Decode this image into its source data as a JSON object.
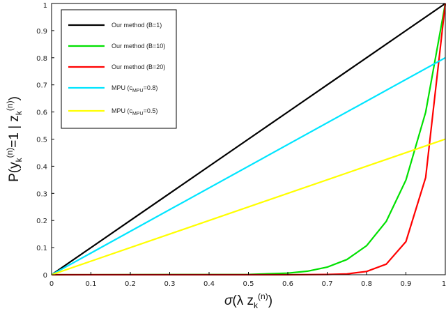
{
  "chart_data": {
    "type": "line",
    "xlabel": "σ(λ z_k^(n))",
    "ylabel": "P(y_k^(n)=1 | z_k^(n))",
    "xlim": [
      0,
      1
    ],
    "ylim": [
      0,
      1
    ],
    "xticks": [
      "0",
      "0.1",
      "0.2",
      "0.3",
      "0.4",
      "0.5",
      "0.6",
      "0.7",
      "0.8",
      "0.9",
      "1"
    ],
    "yticks": [
      "0",
      "0.1",
      "0.2",
      "0.3",
      "0.4",
      "0.5",
      "0.6",
      "0.7",
      "0.8",
      "0.9",
      "1"
    ],
    "grid": false,
    "legend_position": "top-left",
    "series": [
      {
        "name": "Our method (B=1)",
        "color": "#000000",
        "x": [
          0,
          0.1,
          0.2,
          0.3,
          0.4,
          0.5,
          0.6,
          0.7,
          0.8,
          0.9,
          1.0
        ],
        "y": [
          0,
          0.1,
          0.2,
          0.3,
          0.4,
          0.5,
          0.6,
          0.7,
          0.8,
          0.9,
          1.0
        ]
      },
      {
        "name": "Our method (B=10)",
        "color": "#00e000",
        "x": [
          0,
          0.5,
          0.6,
          0.65,
          0.7,
          0.75,
          0.8,
          0.85,
          0.9,
          0.95,
          1.0
        ],
        "y": [
          0,
          0.001,
          0.006,
          0.013,
          0.028,
          0.056,
          0.107,
          0.197,
          0.349,
          0.599,
          1.0
        ]
      },
      {
        "name": "Our method (B=20)",
        "color": "#ff0000",
        "x": [
          0,
          0.6,
          0.7,
          0.75,
          0.8,
          0.85,
          0.9,
          0.95,
          1.0
        ],
        "y": [
          0,
          0.0,
          0.001,
          0.003,
          0.012,
          0.039,
          0.122,
          0.358,
          1.0
        ]
      },
      {
        "name": "MPU (c_MPU=0.8)",
        "color": "#00e5ff",
        "x": [
          0,
          1
        ],
        "y": [
          0,
          0.8
        ]
      },
      {
        "name": "MPU (c_MPU=0.5)",
        "color": "#ffff00",
        "x": [
          0,
          1
        ],
        "y": [
          0,
          0.5
        ]
      }
    ],
    "legend": [
      {
        "main": "Our method (B=1)",
        "sub": "",
        "tail": ""
      },
      {
        "main": "Our method (B=10)",
        "sub": "",
        "tail": ""
      },
      {
        "main": "Our method (B=20)",
        "sub": "",
        "tail": ""
      },
      {
        "main": "MPU (c",
        "sub": "MPU",
        "tail": "=0.8)"
      },
      {
        "main": "MPU (c",
        "sub": "MPU",
        "tail": "=0.5)"
      }
    ]
  }
}
